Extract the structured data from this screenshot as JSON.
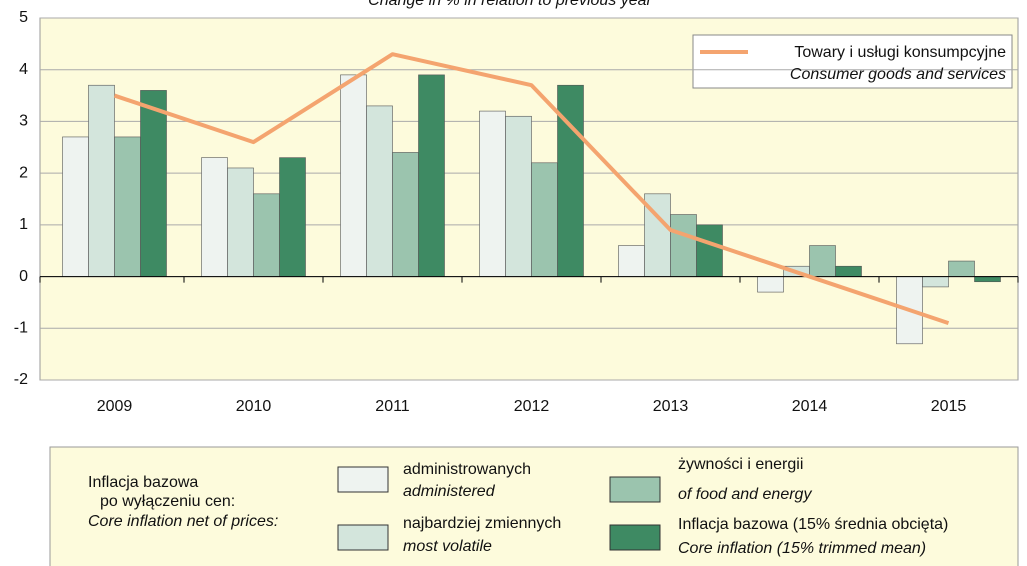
{
  "chart_data": {
    "type": "bar",
    "title": "Change in % in relation to previous year",
    "categories": [
      "2009",
      "2010",
      "2011",
      "2012",
      "2013",
      "2014",
      "2015"
    ],
    "series": [
      {
        "name": "administrowanych",
        "name_en": "administered",
        "color": "#eef3f0",
        "values": [
          2.7,
          2.3,
          3.9,
          3.2,
          0.6,
          -0.3,
          -1.3
        ]
      },
      {
        "name": "najbardziej zmiennych",
        "name_en": "most volatile",
        "color": "#d3e5dc",
        "values": [
          3.7,
          2.1,
          3.3,
          3.1,
          1.6,
          0.2,
          -0.2
        ]
      },
      {
        "name": "żywności i energii",
        "name_en": "of food and energy",
        "color": "#9bc4ae",
        "values": [
          2.7,
          1.6,
          2.4,
          2.2,
          1.2,
          0.6,
          0.3
        ]
      },
      {
        "name": "Inflacja bazowa (15% średnia obcięta)",
        "name_en": "Core inflation (15% trimmed mean)",
        "color": "#3e8a63",
        "values": [
          3.6,
          2.3,
          3.9,
          3.7,
          1.0,
          0.2,
          -0.1
        ]
      }
    ],
    "line_series": {
      "type": "line",
      "name": "Towary i usługi konsumpcyjne",
      "name_en": "Consumer goods and services",
      "color": "#f4a46f",
      "values": [
        3.5,
        2.6,
        4.3,
        3.7,
        0.9,
        0.0,
        -0.9
      ]
    },
    "legend_title": [
      "Inflacja bazowa",
      "po wyłączeniu cen:",
      "Core inflation net of prices:"
    ],
    "ylim": [
      -2,
      5
    ],
    "yticks": [
      -2,
      -1,
      0,
      1,
      2,
      3,
      4,
      5
    ],
    "grid": true
  }
}
